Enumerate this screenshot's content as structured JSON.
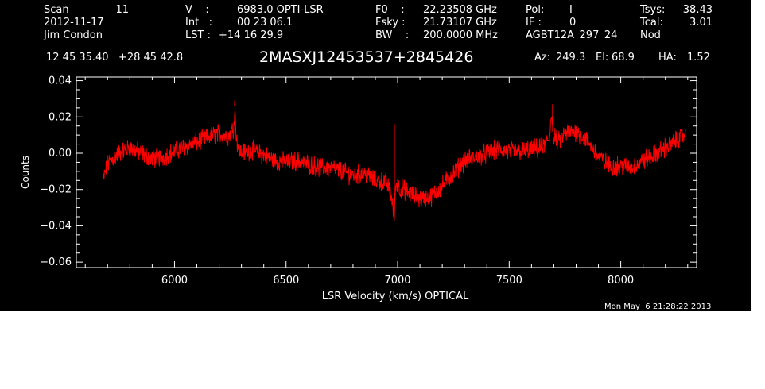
{
  "header": {
    "scan_label": "Scan",
    "scan_value": "11",
    "date": "2012-11-17",
    "observer": "Jim Condon",
    "v_label": "V    :",
    "v_value": "6983.0 OPTI-LSR",
    "int_label": "Int   :",
    "int_value": "00 23 06.1",
    "lst_label": "LST :",
    "lst_value": "+14 16 29.9",
    "f0_label": "F0    :",
    "f0_value": "22.23508 GHz",
    "fsky_label": "Fsky :",
    "fsky_value": "21.73107 GHz",
    "bw_label": "BW    :",
    "bw_value": "200.0000 MHz",
    "pol_label": "Pol:",
    "pol_value": "I",
    "if_label": "IF :",
    "if_value": "0",
    "project": "AGBT12A_297_24",
    "tsys_label": "Tsys:",
    "tsys_value": "38.43",
    "tcal_label": "Tcal:",
    "tcal_value": "3.01",
    "mode": "Nod",
    "ra_dec": "12 45 35.40   +28 45 42.8",
    "source": "2MASXJ12453537+2845426",
    "az_label": "Az:",
    "az_value": "249.3",
    "el_label": "El:",
    "el_value": "68.9",
    "ha_label": "HA:",
    "ha_value": "1.52"
  },
  "timestamp": "Mon May  6 21:28:22 2013",
  "colors": {
    "background": "#000000",
    "foreground": "#ffffff",
    "trace": "#ff0000"
  },
  "chart_data": {
    "type": "line",
    "xlabel": "LSR Velocity (km/s) OPTICAL",
    "ylabel": "Counts",
    "xlim": [
      5560,
      8340
    ],
    "ylim": [
      -0.063,
      0.042
    ],
    "xticks": [
      6000,
      6500,
      7000,
      7500,
      8000
    ],
    "yticks": [
      0.04,
      0.02,
      0.0,
      -0.02,
      -0.04,
      -0.06
    ],
    "xtick_labels": [
      "6000",
      "6500",
      "7000",
      "7500",
      "8000"
    ],
    "ytick_labels": [
      "0.04",
      "0.02",
      "0.00",
      "−0.02",
      "−0.04",
      "−0.06"
    ],
    "grid": false,
    "series": [
      {
        "color": "#ff0000",
        "x": [
          5680,
          5700,
          5750,
          5800,
          5850,
          5900,
          5950,
          6000,
          6050,
          6100,
          6150,
          6200,
          6240,
          6265,
          6270,
          6275,
          6285,
          6300,
          6350,
          6400,
          6450,
          6500,
          6550,
          6600,
          6650,
          6700,
          6750,
          6800,
          6850,
          6900,
          6950,
          6970,
          6985,
          6988,
          6990,
          7000,
          7010,
          7030,
          7050,
          7100,
          7150,
          7200,
          7250,
          7300,
          7350,
          7400,
          7450,
          7500,
          7550,
          7600,
          7650,
          7680,
          7690,
          7695,
          7700,
          7705,
          7720,
          7750,
          7800,
          7850,
          7900,
          7950,
          8000,
          8050,
          8100,
          8150,
          8200,
          8250,
          8290
        ],
        "y": [
          -0.015,
          -0.006,
          0.0,
          0.003,
          0.0,
          -0.003,
          -0.002,
          0.001,
          0.004,
          0.006,
          0.009,
          0.011,
          0.009,
          0.014,
          0.026,
          0.012,
          0.003,
          0.0,
          0.002,
          -0.001,
          -0.004,
          -0.005,
          -0.004,
          -0.006,
          -0.008,
          -0.008,
          -0.01,
          -0.012,
          -0.011,
          -0.015,
          -0.016,
          -0.022,
          -0.036,
          -0.028,
          -0.018,
          -0.016,
          -0.02,
          -0.02,
          -0.022,
          -0.025,
          -0.024,
          -0.018,
          -0.011,
          -0.004,
          -0.002,
          0.0,
          0.002,
          0.001,
          0.001,
          0.002,
          0.003,
          0.008,
          0.024,
          0.012,
          0.006,
          0.009,
          0.006,
          0.011,
          0.012,
          0.007,
          -0.002,
          -0.007,
          -0.007,
          -0.008,
          -0.004,
          -0.001,
          0.003,
          0.007,
          0.011
        ]
      }
    ],
    "spikes": [
      {
        "x": 6985,
        "y": 0.016
      },
      {
        "x": 6270,
        "y": 0.029
      },
      {
        "x": 7695,
        "y": 0.027
      }
    ]
  }
}
